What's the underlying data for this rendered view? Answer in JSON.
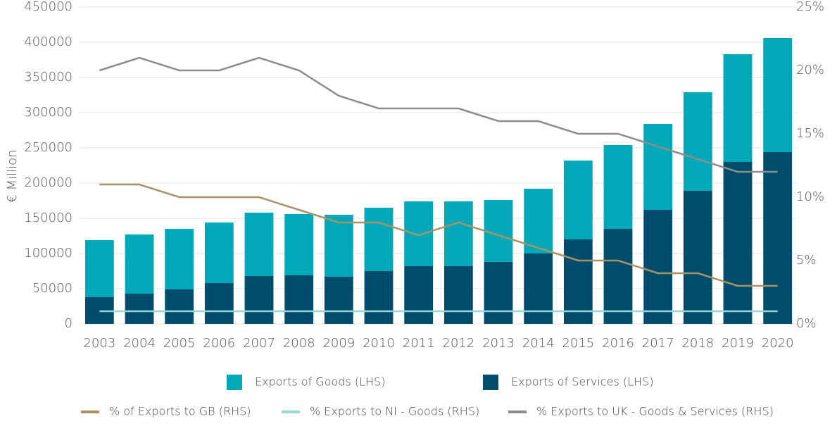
{
  "chart_data": {
    "type": "bar",
    "stacked": true,
    "y_label": "€ Million",
    "categories": [
      "2003",
      "2004",
      "2005",
      "2006",
      "2007",
      "2008",
      "2009",
      "2010",
      "2011",
      "2012",
      "2013",
      "2014",
      "2015",
      "2016",
      "2017",
      "2018",
      "2019",
      "2020"
    ],
    "series": [
      {
        "name": "Exports of Goods (LHS)",
        "type": "bar",
        "axis": "y",
        "color": "#00a8b8",
        "values": [
          81000,
          84000,
          86000,
          86000,
          90000,
          87000,
          88000,
          90000,
          92000,
          92000,
          88000,
          92000,
          112000,
          119000,
          122000,
          140000,
          153000,
          162000
        ]
      },
      {
        "name": "Exports of Services (LHS)",
        "type": "bar",
        "axis": "y",
        "color": "#004c6c",
        "values": [
          38000,
          43000,
          49000,
          58000,
          68000,
          69000,
          67000,
          75000,
          82000,
          82000,
          88000,
          100000,
          120000,
          135000,
          162000,
          189000,
          230000,
          244000
        ]
      },
      {
        "name": "% of Exports to GB (RHS)",
        "type": "line",
        "axis": "y2",
        "color": "#a89366",
        "values": [
          11,
          11,
          10,
          10,
          10,
          9,
          8,
          8,
          7,
          8,
          7,
          6,
          5,
          5,
          4,
          4,
          3,
          3
        ]
      },
      {
        "name": "% Exports to NI - Goods (RHS)",
        "type": "line",
        "axis": "y2",
        "color": "#9ad6d8",
        "values": [
          1,
          1,
          1,
          1,
          1,
          1,
          1,
          1,
          1,
          1,
          1,
          1,
          1,
          1,
          1,
          1,
          1,
          1
        ]
      },
      {
        "name": "% Exports to UK - Goods & Services (RHS)",
        "type": "line",
        "axis": "y2",
        "color": "#8c8c8c",
        "values": [
          20,
          21,
          20,
          20,
          21,
          20,
          18,
          17,
          17,
          17,
          16,
          16,
          15,
          15,
          14,
          13,
          12,
          12
        ]
      }
    ],
    "ylim": [
      0,
      450000
    ],
    "yticks": [
      0,
      50000,
      100000,
      150000,
      200000,
      250000,
      300000,
      350000,
      400000,
      450000
    ],
    "y2lim": [
      0,
      25
    ],
    "y2ticks": [
      {
        "value": 0,
        "label": "0%"
      },
      {
        "value": 5,
        "label": "5%"
      },
      {
        "value": 10,
        "label": "10%"
      },
      {
        "value": 15,
        "label": "15%"
      },
      {
        "value": 20,
        "label": "20%"
      },
      {
        "value": 25,
        "label": "25%"
      }
    ],
    "grid": true
  }
}
